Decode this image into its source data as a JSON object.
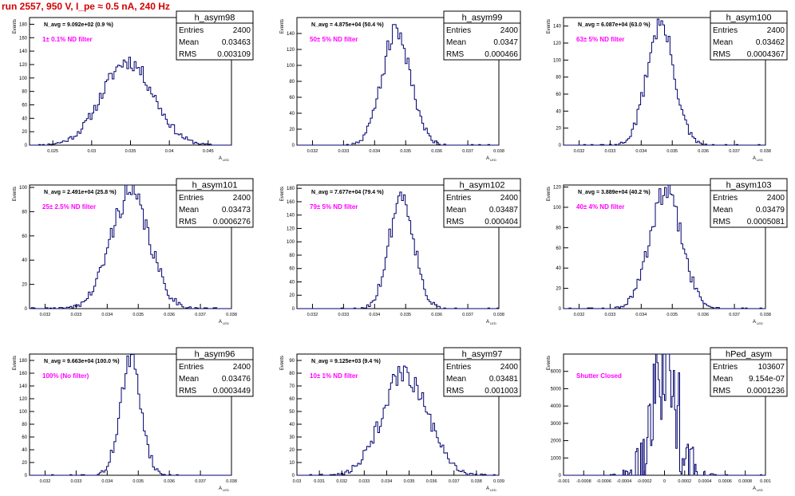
{
  "page": {
    "title": "run 2557,   950 V, I_pe ≈ 0.5 nA, 240 Hz"
  },
  "style": {
    "histogram_color": "#00006e",
    "annotation_color": "#ff00ff",
    "title_color": "#d40000",
    "axis_color": "#000000"
  },
  "stat_labels": {
    "entries": "Entries",
    "mean": "Mean",
    "rms": "RMS"
  },
  "axis_labels": {
    "y": "Events",
    "x_main": "A",
    "x_sub": "LED"
  },
  "chart_data": [
    {
      "type": "histogram",
      "name": "h_asym98",
      "navg": "N_avg = 9.092e+02 (0.9 %)",
      "annotation": "1± 0.1% ND filter",
      "entries": "2400",
      "mean": "0.03463",
      "rms": "0.003109",
      "xlim": [
        0.022,
        0.048
      ],
      "ylim": [
        0,
        190
      ],
      "xticks": [
        0.025,
        0.03,
        0.035,
        0.04,
        0.045
      ],
      "xtick_labels": [
        "0.025",
        "0.03",
        "0.035",
        "0.04",
        "0.045"
      ],
      "yticks": [
        0,
        20,
        40,
        60,
        80,
        100,
        120,
        140,
        160,
        180
      ],
      "gauss": {
        "mean": 0.03463,
        "sigma": 0.0033,
        "peak": 125,
        "bins": 110,
        "seed": 11
      }
    },
    {
      "type": "histogram",
      "name": "h_asym99",
      "navg": "N_avg = 4.875e+04 (50.4 %)",
      "annotation": "50± 5% ND filter",
      "entries": "2400",
      "mean": "0.0347",
      "rms": "0.000466",
      "xlim": [
        0.0315,
        0.038
      ],
      "ylim": [
        0,
        160
      ],
      "xticks": [
        0.032,
        0.033,
        0.034,
        0.035,
        0.036,
        0.037,
        0.038
      ],
      "xtick_labels": [
        "0.032",
        "0.033",
        "0.034",
        "0.035",
        "0.036",
        "0.037",
        "0.038"
      ],
      "yticks": [
        0,
        20,
        40,
        60,
        80,
        100,
        120,
        140
      ],
      "gauss": {
        "mean": 0.0347,
        "sigma": 0.00047,
        "peak": 142,
        "bins": 110,
        "seed": 21
      }
    },
    {
      "type": "histogram",
      "name": "h_asym100",
      "navg": "N_avg = 6.087e+04 (63.0 %)",
      "annotation": "63± 5% ND filter",
      "entries": "2400",
      "mean": "0.03462",
      "rms": "0.0004367",
      "xlim": [
        0.0315,
        0.038
      ],
      "ylim": [
        0,
        150
      ],
      "xticks": [
        0.032,
        0.033,
        0.034,
        0.035,
        0.036,
        0.037,
        0.038
      ],
      "xtick_labels": [
        "0.032",
        "0.033",
        "0.034",
        "0.035",
        "0.036",
        "0.037",
        "0.038"
      ],
      "yticks": [
        0,
        20,
        40,
        60,
        80,
        100,
        120,
        140
      ],
      "gauss": {
        "mean": 0.03462,
        "sigma": 0.00044,
        "peak": 142,
        "bins": 110,
        "seed": 31
      }
    },
    {
      "type": "histogram",
      "name": "h_asym101",
      "navg": "N_avg = 2.491e+04 (25.8 %)",
      "annotation": "25± 2.5% ND filter",
      "entries": "2400",
      "mean": "0.03473",
      "rms": "0.0006276",
      "xlim": [
        0.0315,
        0.038
      ],
      "ylim": [
        0,
        102
      ],
      "xticks": [
        0.032,
        0.033,
        0.034,
        0.035,
        0.036,
        0.037,
        0.038
      ],
      "xtick_labels": [
        "0.032",
        "0.033",
        "0.034",
        "0.035",
        "0.036",
        "0.037",
        "0.038"
      ],
      "yticks": [
        0,
        20,
        40,
        60,
        80,
        100
      ],
      "gauss": {
        "mean": 0.03473,
        "sigma": 0.00063,
        "peak": 95,
        "bins": 110,
        "seed": 41
      }
    },
    {
      "type": "histogram",
      "name": "h_asym102",
      "navg": "N_avg = 7.677e+04 (79.4 %)",
      "annotation": "79± 5% ND filter",
      "entries": "2400",
      "mean": "0.03487",
      "rms": "0.000404",
      "xlim": [
        0.0315,
        0.038
      ],
      "ylim": [
        0,
        185
      ],
      "xticks": [
        0.032,
        0.033,
        0.034,
        0.035,
        0.036,
        0.037,
        0.038
      ],
      "xtick_labels": [
        "0.032",
        "0.033",
        "0.034",
        "0.035",
        "0.036",
        "0.037",
        "0.038"
      ],
      "yticks": [
        0,
        20,
        40,
        60,
        80,
        100,
        120,
        140,
        160,
        180
      ],
      "gauss": {
        "mean": 0.03487,
        "sigma": 0.0004,
        "peak": 170,
        "bins": 110,
        "seed": 51
      }
    },
    {
      "type": "histogram",
      "name": "h_asym103",
      "navg": "N_avg = 3.889e+04 (40.2 %)",
      "annotation": "40± 4% ND filter",
      "entries": "2400",
      "mean": "0.03479",
      "rms": "0.0005081",
      "xlim": [
        0.0315,
        0.038
      ],
      "ylim": [
        0,
        122
      ],
      "xticks": [
        0.032,
        0.033,
        0.034,
        0.035,
        0.036,
        0.037,
        0.038
      ],
      "xtick_labels": [
        "0.032",
        "0.033",
        "0.034",
        "0.035",
        "0.036",
        "0.037",
        "0.038"
      ],
      "yticks": [
        0,
        20,
        40,
        60,
        80,
        100,
        120
      ],
      "gauss": {
        "mean": 0.03479,
        "sigma": 0.00051,
        "peak": 115,
        "bins": 110,
        "seed": 61
      }
    },
    {
      "type": "histogram",
      "name": "h_asym96",
      "navg": "N_avg = 9.663e+04 (100.0 %)",
      "annotation": "100% (No filter)",
      "entries": "2400",
      "mean": "0.03476",
      "rms": "0.0003449",
      "xlim": [
        0.0315,
        0.038
      ],
      "ylim": [
        0,
        190
      ],
      "xticks": [
        0.032,
        0.033,
        0.034,
        0.035,
        0.036,
        0.037,
        0.038
      ],
      "xtick_labels": [
        "0.032",
        "0.033",
        "0.034",
        "0.035",
        "0.036",
        "0.037",
        "0.038"
      ],
      "yticks": [
        0,
        20,
        40,
        60,
        80,
        100,
        120,
        140,
        160,
        180
      ],
      "gauss": {
        "mean": 0.03476,
        "sigma": 0.00034,
        "peak": 178,
        "bins": 110,
        "seed": 71
      }
    },
    {
      "type": "histogram",
      "name": "h_asym97",
      "navg": "N_avg = 9.125e+03 (9.4 %)",
      "annotation": "10± 1% ND filter",
      "entries": "2400",
      "mean": "0.03481",
      "rms": "0.001003",
      "xlim": [
        0.03,
        0.039
      ],
      "ylim": [
        0,
        95
      ],
      "xticks": [
        0.03,
        0.031,
        0.032,
        0.033,
        0.034,
        0.035,
        0.036,
        0.037,
        0.038,
        0.039
      ],
      "xtick_labels": [
        "0.03",
        "0.031",
        "0.032",
        "0.033",
        "0.034",
        "0.035",
        "0.036",
        "0.037",
        "0.038",
        "0.039"
      ],
      "yticks": [
        0,
        10,
        20,
        30,
        40,
        50,
        60,
        70,
        80,
        90
      ],
      "gauss": {
        "mean": 0.03481,
        "sigma": 0.001,
        "peak": 80,
        "bins": 110,
        "seed": 81
      }
    },
    {
      "type": "histogram",
      "name": "hPed_asym",
      "navg": "",
      "annotation": "Shutter Closed",
      "entries": "103607",
      "mean": "9.154e-07",
      "rms": "0.0001236",
      "xlim": [
        -0.001,
        0.001
      ],
      "ylim": [
        0,
        7000
      ],
      "xticks": [
        -0.001,
        -0.0008,
        -0.0006,
        -0.0004,
        -0.0002,
        0,
        0.0002,
        0.0004,
        0.0006,
        0.0008,
        0.001
      ],
      "xtick_labels": [
        "-0.001",
        "-0.0008",
        "-0.0006",
        "-0.0004",
        "-0.0002",
        "0",
        "0.0002",
        "0.0004",
        "0.0006",
        "0.0008",
        "0.001"
      ],
      "yticks": [
        0,
        1000,
        2000,
        3000,
        4000,
        5000,
        6000
      ],
      "gauss": {
        "mean": 0.0,
        "sigma": 0.000124,
        "peak": 6700,
        "bins": 160,
        "seed": 91
      }
    }
  ]
}
